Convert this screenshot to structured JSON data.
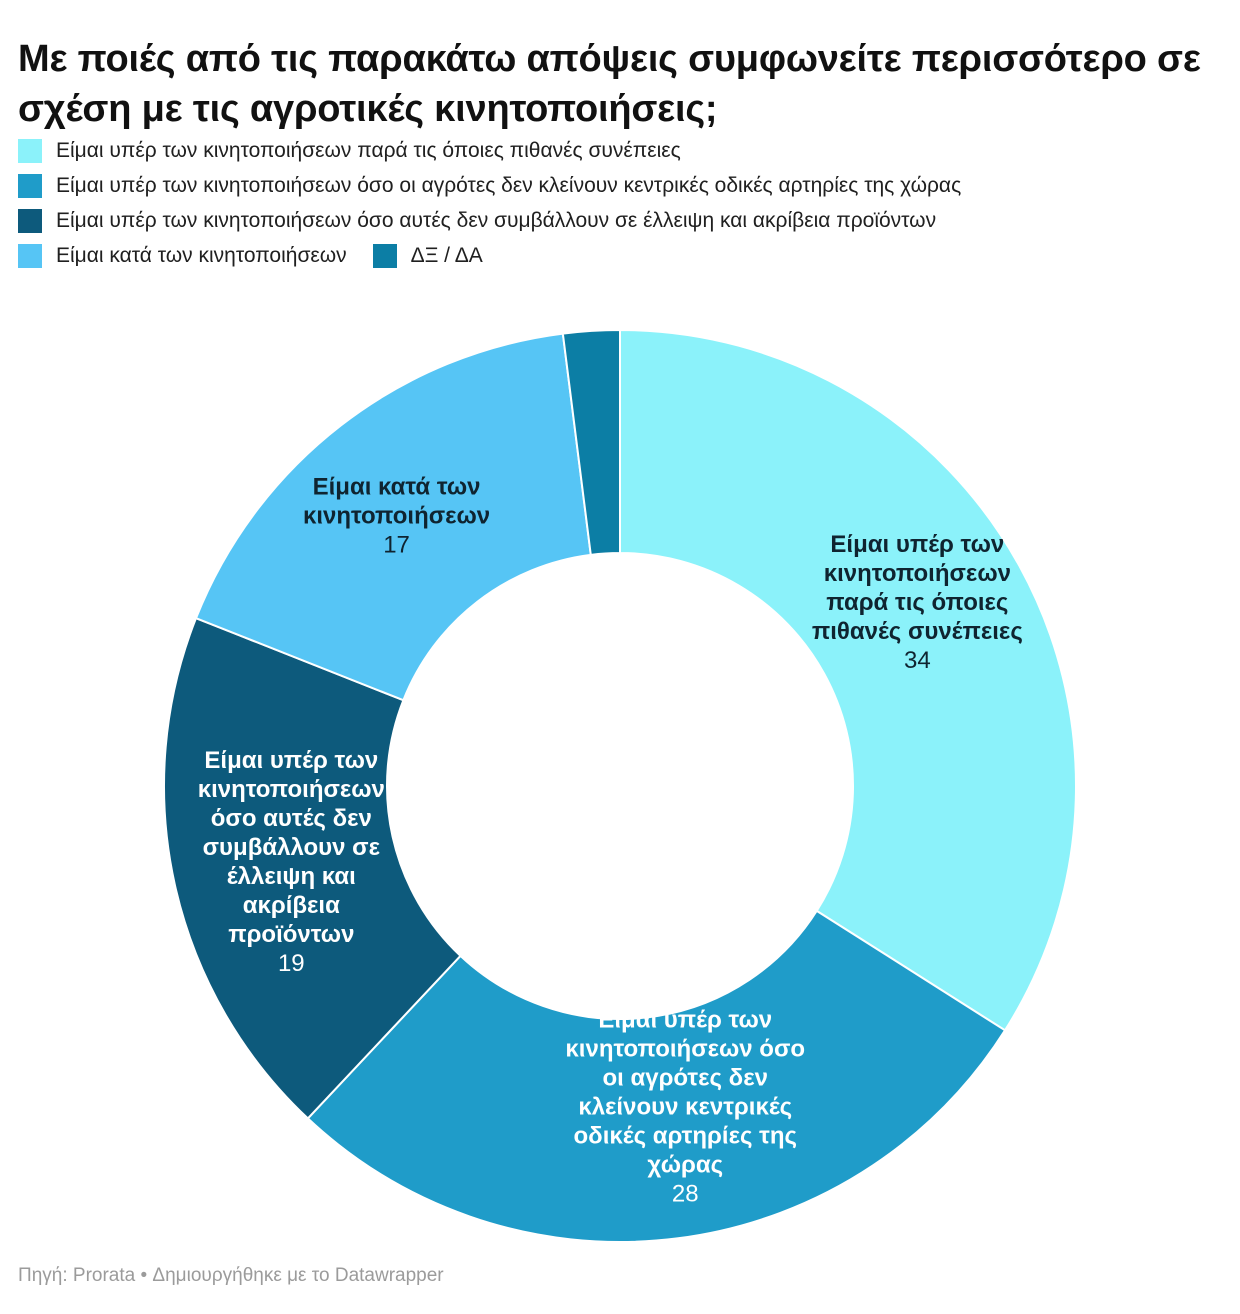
{
  "header": {
    "title": "Με ποιές από τις παρακάτω απόψεις συμφωνείτε περισσότερο σε σχέση με τις αγροτικές κινητοποιήσεις;"
  },
  "legend": {
    "items": [
      {
        "label": "Είμαι υπέρ των κινητοποιήσεων παρά τις όποιες πιθανές συνέπειες",
        "color": "#8BF2FA"
      },
      {
        "label": "Είμαι υπέρ των κινητοποιήσεων όσο οι αγρότες δεν κλείνουν κεντρικές οδικές αρτηρίες της χώρας",
        "color": "#1F9CC9"
      },
      {
        "label": "Είμαι υπέρ των κινητοποιήσεων όσο αυτές δεν συμβάλλουν σε έλλειψη και ακρίβεια προϊόντων",
        "color": "#0D5A7C"
      },
      {
        "label": "Είμαι κατά των κινητοποιήσεων",
        "color": "#56C5F5"
      },
      {
        "label": "ΔΞ / ΔΑ",
        "color": "#0C7EA5"
      }
    ]
  },
  "chart_data": {
    "type": "pie",
    "subtype": "donut",
    "title": "Με ποιές από τις παρακάτω απόψεις συμφωνείτε περισσότερο σε σχέση με τις αγροτικές κινητοποιήσεις;",
    "categories": [
      "Είμαι υπέρ των κινητοποιήσεων παρά τις όποιες πιθανές συνέπειες",
      "Είμαι υπέρ των κινητοποιήσεων όσο οι αγρότες δεν κλείνουν κεντρικές οδικές αρτηρίες της χώρας",
      "Είμαι υπέρ των κινητοποιήσεων όσο αυτές δεν συμβάλλουν σε έλλειψη και ακρίβεια προϊόντων",
      "Είμαι κατά των κινητοποιήσεων",
      "ΔΞ / ΔΑ"
    ],
    "values": [
      34,
      28,
      19,
      17,
      2
    ],
    "colors": [
      "#8BF2FA",
      "#1F9CC9",
      "#0D5A7C",
      "#56C5F5",
      "#0C7EA5"
    ],
    "start_angle_deg": 0,
    "direction": "clockwise",
    "donut_hole_ratio": 0.51,
    "legend_position": "top",
    "separator_color": "#ffffff",
    "slices": [
      {
        "category": "Είμαι υπέρ των κινητοποιήσεων παρά τις όποιες πιθανές συνέπειες",
        "value": 34,
        "color": "#8BF2FA",
        "show_label": true,
        "label_lines": [
          "Είμαι υπέρ των",
          "κινητοποιήσεων",
          "παρά τις όποιες",
          "πιθανές συνέπειες"
        ],
        "label_color": "#0f2430"
      },
      {
        "category": "Είμαι υπέρ των κινητοποιήσεων όσο οι αγρότες δεν κλείνουν κεντρικές οδικές αρτηρίες της χώρας",
        "value": 28,
        "color": "#1F9CC9",
        "show_label": true,
        "label_lines": [
          "Είμαι υπέρ των",
          "κινητοποιήσεων όσο",
          "οι αγρότες δεν",
          "κλείνουν κεντρικές",
          "οδικές αρτηρίες της",
          "χώρας"
        ],
        "label_color": "#ffffff"
      },
      {
        "category": "Είμαι υπέρ των κινητοποιήσεων όσο αυτές δεν συμβάλλουν σε έλλειψη και ακρίβεια προϊόντων",
        "value": 19,
        "color": "#0D5A7C",
        "show_label": true,
        "label_lines": [
          "Είμαι υπέρ των",
          "κινητοποιήσεων",
          "όσο αυτές δεν",
          "συμβάλλουν σε",
          "έλλειψη και",
          "ακρίβεια",
          "προϊόντων"
        ],
        "label_color": "#ffffff"
      },
      {
        "category": "Είμαι κατά των κινητοποιήσεων",
        "value": 17,
        "color": "#56C5F5",
        "show_label": true,
        "label_lines": [
          "Είμαι κατά των",
          "κινητοποιήσεων"
        ],
        "label_color": "#0f2430"
      },
      {
        "category": "ΔΞ / ΔΑ",
        "value": 2,
        "color": "#0C7EA5",
        "show_label": false,
        "label_lines": [],
        "label_color": "#ffffff"
      }
    ]
  },
  "footer": {
    "text": "Πηγή: Prorata • Δημιουργήθηκε με το Datawrapper"
  }
}
